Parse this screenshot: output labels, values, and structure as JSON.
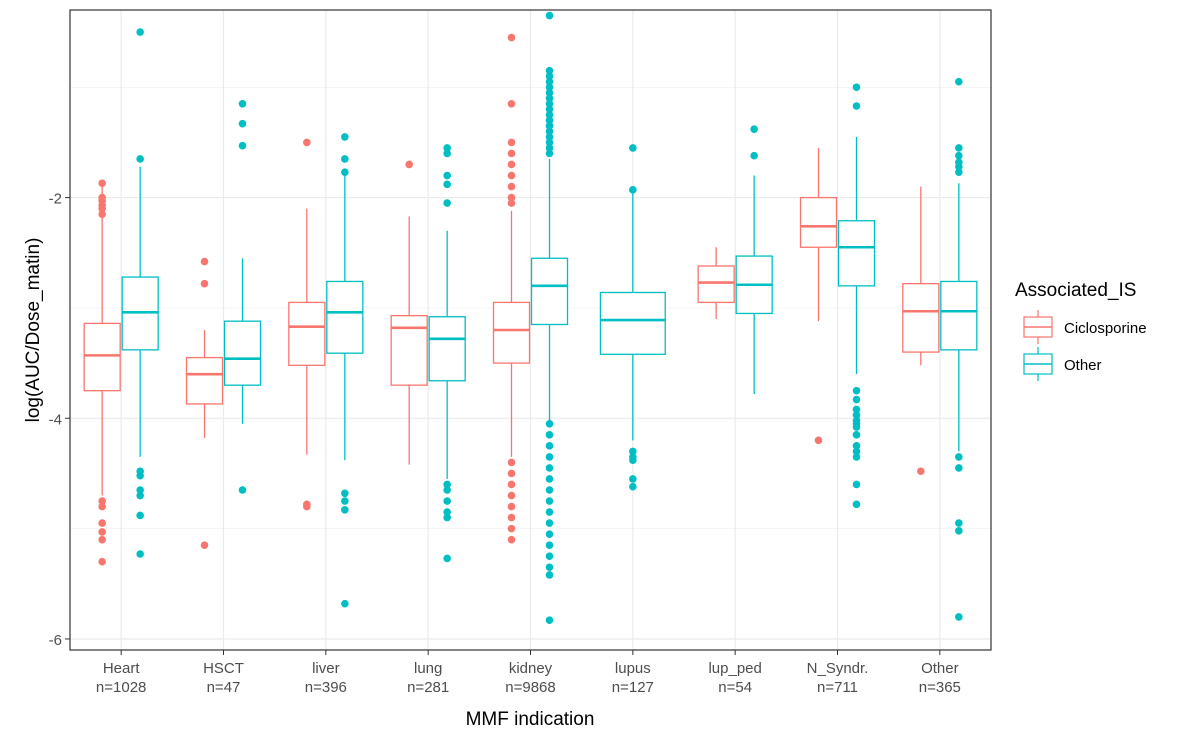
{
  "chart_data": {
    "type": "boxplot",
    "title": "",
    "xlabel": "MMF indication",
    "ylabel": "log(AUC/Dose_matin)",
    "ylim": [
      -6.1,
      -0.3
    ],
    "yticks": [
      -6,
      -4,
      -2
    ],
    "ytick_labels": [
      "-6",
      "-4",
      "-2"
    ],
    "grid": true,
    "legend_position": "right",
    "legend_title": "Associated_IS",
    "categories": [
      {
        "name": "Heart",
        "n_label": "n=1028"
      },
      {
        "name": "HSCT",
        "n_label": "n=47"
      },
      {
        "name": "liver",
        "n_label": "n=396"
      },
      {
        "name": "lung",
        "n_label": "n=281"
      },
      {
        "name": "kidney",
        "n_label": "n=9868"
      },
      {
        "name": "lupus",
        "n_label": "n=127"
      },
      {
        "name": "lup_ped",
        "n_label": "n=54"
      },
      {
        "name": "N_Syndr.",
        "n_label": "n=711"
      },
      {
        "name": "Other",
        "n_label": "n=365"
      }
    ],
    "series": [
      {
        "name": "Ciclosporine",
        "color": "#F8766D",
        "boxes": [
          {
            "category": "Heart",
            "whisker_low": -4.7,
            "q1": -3.75,
            "median": -3.43,
            "q3": -3.14,
            "whisker_high": -1.87,
            "outliers": [
              -1.87,
              -2.0,
              -2.03,
              -2.07,
              -2.1,
              -2.15,
              -4.75,
              -4.8,
              -4.95,
              -5.03,
              -5.1,
              -5.3
            ]
          },
          {
            "category": "HSCT",
            "whisker_low": -4.18,
            "q1": -3.87,
            "median": -3.6,
            "q3": -3.45,
            "whisker_high": -3.2,
            "outliers": [
              -2.58,
              -2.78,
              -5.15
            ]
          },
          {
            "category": "liver",
            "whisker_low": -4.33,
            "q1": -3.52,
            "median": -3.17,
            "q3": -2.95,
            "whisker_high": -2.1,
            "outliers": [
              -1.5,
              -4.78,
              -4.8
            ]
          },
          {
            "category": "lung",
            "whisker_low": -4.42,
            "q1": -3.7,
            "median": -3.18,
            "q3": -3.07,
            "whisker_high": -2.17,
            "outliers": [
              -1.7
            ]
          },
          {
            "category": "kidney",
            "whisker_low": -4.35,
            "q1": -3.5,
            "median": -3.2,
            "q3": -2.95,
            "whisker_high": -2.12,
            "outliers": [
              -0.55,
              -1.15,
              -1.5,
              -1.6,
              -1.7,
              -1.8,
              -1.9,
              -2.0,
              -2.05,
              -4.4,
              -4.5,
              -4.6,
              -4.7,
              -4.8,
              -4.9,
              -5.0,
              -5.1
            ]
          },
          {
            "category": "lup_ped",
            "whisker_low": -3.1,
            "q1": -2.95,
            "median": -2.77,
            "q3": -2.62,
            "whisker_high": -2.45,
            "outliers": []
          },
          {
            "category": "N_Syndr.",
            "whisker_low": -3.12,
            "q1": -2.45,
            "median": -2.26,
            "q3": -2.0,
            "whisker_high": -1.55,
            "outliers": [
              -4.2
            ]
          },
          {
            "category": "Other",
            "whisker_low": -3.52,
            "q1": -3.4,
            "median": -3.03,
            "q3": -2.78,
            "whisker_high": -1.9,
            "outliers": [
              -4.48
            ]
          }
        ]
      },
      {
        "name": "Other",
        "color": "#00BFC4",
        "boxes": [
          {
            "category": "Heart",
            "whisker_low": -4.35,
            "q1": -3.38,
            "median": -3.04,
            "q3": -2.72,
            "whisker_high": -1.72,
            "outliers": [
              -0.5,
              -1.65,
              -4.48,
              -4.52,
              -4.65,
              -4.7,
              -4.88,
              -5.23
            ]
          },
          {
            "category": "HSCT",
            "whisker_low": -4.05,
            "q1": -3.7,
            "median": -3.46,
            "q3": -3.12,
            "whisker_high": -2.55,
            "outliers": [
              -1.15,
              -1.33,
              -1.53,
              -4.65
            ]
          },
          {
            "category": "liver",
            "whisker_low": -4.38,
            "q1": -3.41,
            "median": -3.04,
            "q3": -2.76,
            "whisker_high": -1.8,
            "outliers": [
              -1.45,
              -1.65,
              -1.77,
              -4.68,
              -4.75,
              -4.83,
              -5.68
            ]
          },
          {
            "category": "lung",
            "whisker_low": -4.55,
            "q1": -3.66,
            "median": -3.28,
            "q3": -3.08,
            "whisker_high": -2.3,
            "outliers": [
              -1.55,
              -1.6,
              -1.8,
              -1.88,
              -2.05,
              -4.6,
              -4.65,
              -4.75,
              -4.85,
              -4.9,
              -5.27
            ]
          },
          {
            "category": "kidney",
            "whisker_low": -4.05,
            "q1": -3.15,
            "median": -2.8,
            "q3": -2.55,
            "whisker_high": -1.65,
            "outliers": [
              -0.35,
              -0.85,
              -0.9,
              -0.95,
              -1.0,
              -1.05,
              -1.1,
              -1.15,
              -1.2,
              -1.25,
              -1.3,
              -1.35,
              -1.4,
              -1.45,
              -1.5,
              -1.55,
              -1.6,
              -4.05,
              -4.15,
              -4.25,
              -4.35,
              -4.45,
              -4.55,
              -4.65,
              -4.75,
              -4.85,
              -4.95,
              -5.05,
              -5.15,
              -5.25,
              -5.35,
              -5.42,
              -5.83
            ]
          },
          {
            "category": "lupus",
            "whisker_low": -4.2,
            "q1": -3.42,
            "median": -3.11,
            "q3": -2.86,
            "whisker_high": -1.93,
            "outliers": [
              -1.55,
              -1.93,
              -4.3,
              -4.35,
              -4.38,
              -4.55,
              -4.62
            ]
          },
          {
            "category": "lup_ped",
            "whisker_low": -3.78,
            "q1": -3.05,
            "median": -2.79,
            "q3": -2.53,
            "whisker_high": -1.8,
            "outliers": [
              -1.38,
              -1.62
            ]
          },
          {
            "category": "N_Syndr.",
            "whisker_low": -3.6,
            "q1": -2.8,
            "median": -2.45,
            "q3": -2.21,
            "whisker_high": -1.45,
            "outliers": [
              -1.0,
              -1.17,
              -3.75,
              -3.83,
              -3.92,
              -3.97,
              -4.02,
              -4.05,
              -4.08,
              -4.15,
              -4.25,
              -4.3,
              -4.35,
              -4.6,
              -4.78
            ]
          },
          {
            "category": "Other",
            "whisker_low": -4.3,
            "q1": -3.38,
            "median": -3.03,
            "q3": -2.76,
            "whisker_high": -1.87,
            "outliers": [
              -0.95,
              -1.55,
              -1.62,
              -1.68,
              -1.72,
              -1.77,
              -4.35,
              -4.45,
              -4.95,
              -5.02,
              -5.8
            ]
          }
        ]
      }
    ]
  }
}
